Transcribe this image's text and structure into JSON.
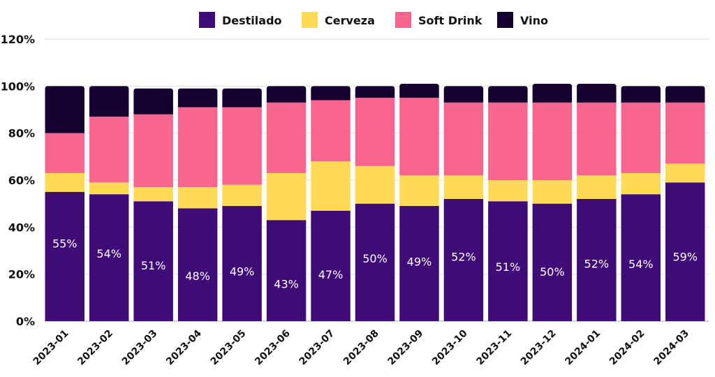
{
  "chart_data": {
    "type": "bar",
    "stacked": true,
    "title": "",
    "xlabel": "",
    "ylabel": "",
    "ylim": [
      0,
      120
    ],
    "yticks": [
      "0%",
      "20%",
      "40%",
      "60%",
      "80%",
      "100%",
      "120%"
    ],
    "ytick_values": [
      0,
      20,
      40,
      60,
      80,
      100,
      120
    ],
    "grid": true,
    "legend_position": "top-center",
    "categories": [
      "2023-01",
      "2023-02",
      "2023-03",
      "2023-04",
      "2023-05",
      "2023-06",
      "2023-07",
      "2023-08",
      "2023-09",
      "2023-10",
      "2023-11",
      "2023-12",
      "2024-01",
      "2024-02",
      "2024-03"
    ],
    "series": [
      {
        "name": "Destilado",
        "color": "#3f0b76",
        "values": [
          55,
          54,
          51,
          48,
          49,
          43,
          47,
          50,
          49,
          52,
          51,
          50,
          52,
          54,
          59
        ]
      },
      {
        "name": "Cerveza",
        "color": "#ffda55",
        "values": [
          8,
          5,
          6,
          9,
          9,
          20,
          21,
          16,
          13,
          10,
          9,
          10,
          10,
          9,
          8
        ]
      },
      {
        "name": "Soft Drink",
        "color": "#f9658f",
        "values": [
          17,
          28,
          31,
          34,
          33,
          30,
          26,
          29,
          33,
          31,
          33,
          33,
          31,
          30,
          26
        ]
      },
      {
        "name": "Vino",
        "color": "#140130",
        "values": [
          20,
          13,
          11,
          8,
          8,
          7,
          6,
          5,
          6,
          7,
          7,
          8,
          8,
          7,
          7
        ]
      }
    ],
    "data_labels": {
      "series": "Destilado",
      "labels": [
        "55%",
        "54%",
        "51%",
        "48%",
        "49%",
        "43%",
        "47%",
        "50%",
        "49%",
        "52%",
        "51%",
        "50%",
        "52%",
        "54%",
        "59%"
      ]
    }
  }
}
